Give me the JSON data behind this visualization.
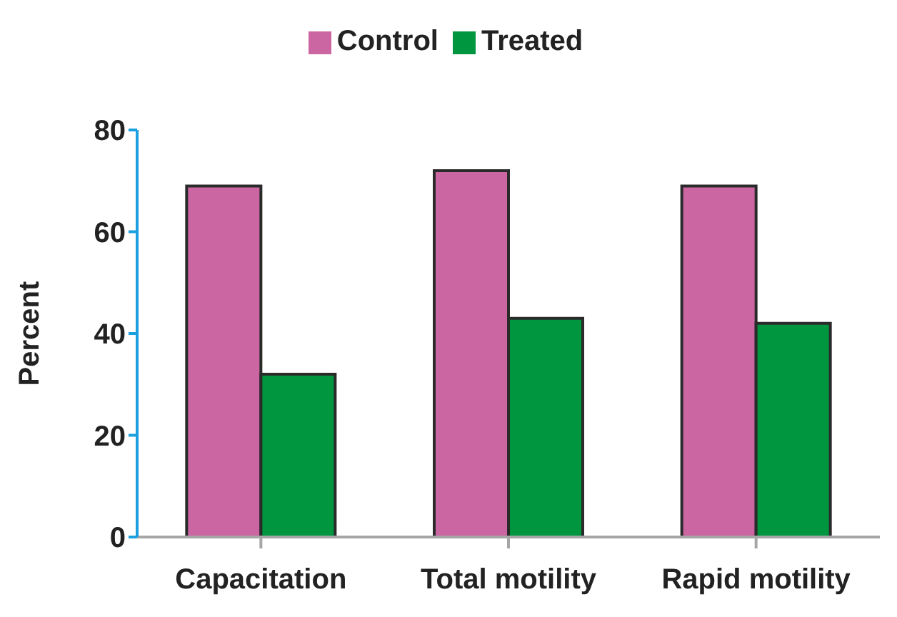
{
  "chart_data": {
    "type": "bar",
    "categories": [
      "Capacitation",
      "Total motility",
      "Rapid motility"
    ],
    "ylabel": "Percent",
    "series": [
      {
        "name": "Control",
        "color": "#cc66a3",
        "values": [
          69,
          72,
          69
        ]
      },
      {
        "name": "Treated",
        "color": "#009640",
        "values": [
          32,
          43,
          42
        ]
      }
    ],
    "ylim": [
      0,
      80
    ],
    "yticks": [
      0,
      20,
      40,
      60,
      80
    ],
    "legend": "top"
  }
}
